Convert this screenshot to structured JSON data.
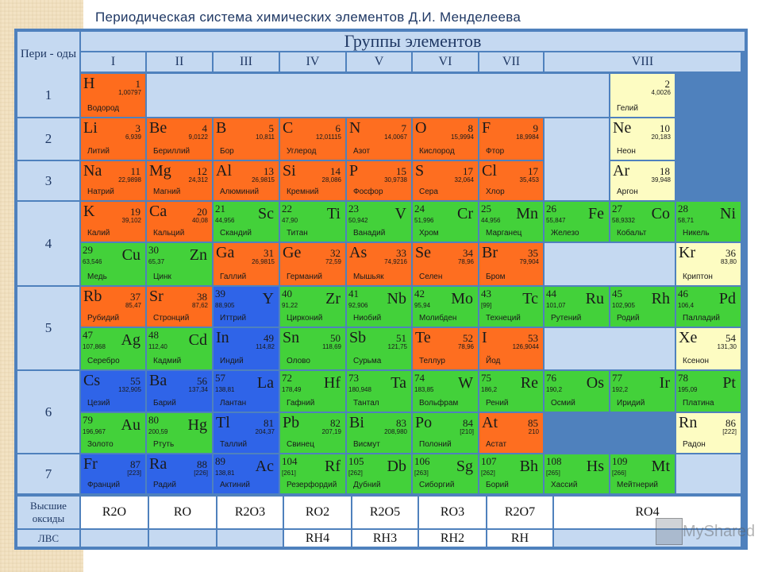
{
  "title": "Периодическая система химических элементов Д.И. Менделеева",
  "periods_label": "Пери - оды",
  "groups_label": "Группы элементов",
  "groups": [
    "I",
    "II",
    "III",
    "IV",
    "V",
    "VI",
    "VII",
    "VIII"
  ],
  "periods": [
    "1",
    "2",
    "3",
    "4",
    "5",
    "6",
    "7"
  ],
  "oxides_label": "Высшие оксиды",
  "hydrides_label": "ЛВС",
  "oxides": [
    "R2O",
    "RO",
    "R2O3",
    "RO2",
    "R2O5",
    "RO3",
    "R2O7",
    "RO4"
  ],
  "hydrides": [
    "",
    "",
    "",
    "RH4",
    "RH3",
    "RH2",
    "RH",
    ""
  ],
  "watermark": "MyShared",
  "colors": {
    "s": "#fe6c1d",
    "p": "#fe6e20",
    "d": "#43d13a",
    "f": "#2f64e8",
    "noble": "#fdfcc2",
    "header": "#c5d9f1",
    "grid": "#4f81bd"
  },
  "elements": [
    {
      "row": 0,
      "col": 0,
      "sym": "H",
      "num": "1",
      "mass": "1,00797",
      "name": "Водород",
      "t": "s",
      "al": "L"
    },
    {
      "row": 0,
      "col": 8,
      "sym": "",
      "num": "2",
      "mass": "4,0026",
      "name": "Гелий",
      "t": "noble",
      "al": "L"
    },
    {
      "row": 1,
      "col": 0,
      "sym": "Li",
      "num": "3",
      "mass": "6,939",
      "name": "Литий",
      "t": "s",
      "al": "L"
    },
    {
      "row": 1,
      "col": 1,
      "sym": "Be",
      "num": "4",
      "mass": "9,0122",
      "name": "Бериллий",
      "t": "s",
      "al": "L"
    },
    {
      "row": 1,
      "col": 2,
      "sym": "B",
      "num": "5",
      "mass": "10,811",
      "name": "Бор",
      "t": "p",
      "al": "L"
    },
    {
      "row": 1,
      "col": 3,
      "sym": "C",
      "num": "6",
      "mass": "12,01115",
      "name": "Углерод",
      "t": "p",
      "al": "L"
    },
    {
      "row": 1,
      "col": 4,
      "sym": "N",
      "num": "7",
      "mass": "14,0067",
      "name": "Азот",
      "t": "p",
      "al": "L"
    },
    {
      "row": 1,
      "col": 5,
      "sym": "O",
      "num": "8",
      "mass": "15,9994",
      "name": "Кислород",
      "t": "p",
      "al": "L"
    },
    {
      "row": 1,
      "col": 6,
      "sym": "F",
      "num": "9",
      "mass": "18,9984",
      "name": "Фтор",
      "t": "p",
      "al": "L"
    },
    {
      "row": 1,
      "col": 8,
      "sym": "Ne",
      "num": "10",
      "mass": "20,183",
      "name": "Неон",
      "t": "noble",
      "al": "L"
    },
    {
      "row": 2,
      "col": 0,
      "sym": "Na",
      "num": "11",
      "mass": "22,9898",
      "name": "Натрий",
      "t": "s",
      "al": "L"
    },
    {
      "row": 2,
      "col": 1,
      "sym": "Mg",
      "num": "12",
      "mass": "24,312",
      "name": "Магний",
      "t": "s",
      "al": "L"
    },
    {
      "row": 2,
      "col": 2,
      "sym": "Al",
      "num": "13",
      "mass": "26,9815",
      "name": "Алюминий",
      "t": "p",
      "al": "L"
    },
    {
      "row": 2,
      "col": 3,
      "sym": "Si",
      "num": "14",
      "mass": "28,086",
      "name": "Кремний",
      "t": "p",
      "al": "L"
    },
    {
      "row": 2,
      "col": 4,
      "sym": "P",
      "num": "15",
      "mass": "30,9738",
      "name": "Фосфор",
      "t": "p",
      "al": "L"
    },
    {
      "row": 2,
      "col": 5,
      "sym": "S",
      "num": "17",
      "mass": "32,064",
      "name": "Сера",
      "t": "p",
      "al": "L"
    },
    {
      "row": 2,
      "col": 6,
      "sym": "Cl",
      "num": "17",
      "mass": "35,453",
      "name": "Хлор",
      "t": "p",
      "al": "L"
    },
    {
      "row": 2,
      "col": 8,
      "sym": "Ar",
      "num": "18",
      "mass": "39,948",
      "name": "Аргон",
      "t": "noble",
      "al": "L"
    },
    {
      "row": 3,
      "col": 0,
      "sym": "K",
      "num": "19",
      "mass": "39,102",
      "name": "Калий",
      "t": "s",
      "al": "L"
    },
    {
      "row": 3,
      "col": 1,
      "sym": "Ca",
      "num": "20",
      "mass": "40,08",
      "name": "Кальций",
      "t": "s",
      "al": "L"
    },
    {
      "row": 3,
      "col": 2,
      "sym": "Sc",
      "num": "21",
      "mass": "44,956",
      "name": "Скандий",
      "t": "d",
      "al": "R"
    },
    {
      "row": 3,
      "col": 3,
      "sym": "Ti",
      "num": "22",
      "mass": "47,90",
      "name": "Титан",
      "t": "d",
      "al": "R"
    },
    {
      "row": 3,
      "col": 4,
      "sym": "V",
      "num": "23",
      "mass": "50,942",
      "name": "Ванадий",
      "t": "d",
      "al": "R"
    },
    {
      "row": 3,
      "col": 5,
      "sym": "Cr",
      "num": "24",
      "mass": "51,996",
      "name": "Хром",
      "t": "d",
      "al": "R"
    },
    {
      "row": 3,
      "col": 6,
      "sym": "Mn",
      "num": "25",
      "mass": "44,956",
      "name": "Марганец",
      "t": "d",
      "al": "R"
    },
    {
      "row": 3,
      "col": 7,
      "sym": "Fe",
      "num": "26",
      "mass": "55,847",
      "name": "Железо",
      "t": "d",
      "al": "R"
    },
    {
      "row": 3,
      "col": 8,
      "sym": "Co",
      "num": "27",
      "mass": "58,9332",
      "name": "Кобальт",
      "t": "d",
      "al": "R"
    },
    {
      "row": 3,
      "col": 9,
      "sym": "Ni",
      "num": "28",
      "mass": "58,71",
      "name": "Никель",
      "t": "d",
      "al": "R"
    },
    {
      "row": 4,
      "col": 0,
      "sym": "Cu",
      "num": "29",
      "mass": "63,546",
      "name": "Медь",
      "t": "d",
      "al": "R"
    },
    {
      "row": 4,
      "col": 1,
      "sym": "Zn",
      "num": "30",
      "mass": "65,37",
      "name": "Цинк",
      "t": "d",
      "al": "R"
    },
    {
      "row": 4,
      "col": 2,
      "sym": "Ga",
      "num": "31",
      "mass": "26,9815",
      "name": "Галлий",
      "t": "p",
      "al": "L"
    },
    {
      "row": 4,
      "col": 3,
      "sym": "Ge",
      "num": "32",
      "mass": "72,59",
      "name": "Германий",
      "t": "p",
      "al": "L"
    },
    {
      "row": 4,
      "col": 4,
      "sym": "As",
      "num": "33",
      "mass": "74,9216",
      "name": "Мышьяк",
      "t": "p",
      "al": "L"
    },
    {
      "row": 4,
      "col": 5,
      "sym": "Se",
      "num": "34",
      "mass": "78,96",
      "name": "Селен",
      "t": "p",
      "al": "L"
    },
    {
      "row": 4,
      "col": 6,
      "sym": "Br",
      "num": "35",
      "mass": "79,904",
      "name": "Бром",
      "t": "p",
      "al": "L"
    },
    {
      "row": 4,
      "col": 9,
      "sym": "Kr",
      "num": "36",
      "mass": "83,80",
      "name": "Криптон",
      "t": "noble",
      "al": "L"
    },
    {
      "row": 5,
      "col": 0,
      "sym": "Rb",
      "num": "37",
      "mass": "85,47",
      "name": "Рубидий",
      "t": "s",
      "al": "L"
    },
    {
      "row": 5,
      "col": 1,
      "sym": "Sr",
      "num": "38",
      "mass": "87,62",
      "name": "Стронций",
      "t": "s",
      "al": "L"
    },
    {
      "row": 5,
      "col": 2,
      "sym": "Y",
      "num": "39",
      "mass": "88,905",
      "name": "Иттрий",
      "t": "f",
      "al": "R"
    },
    {
      "row": 5,
      "col": 3,
      "sym": "Zr",
      "num": "40",
      "mass": "91,22",
      "name": "Цирконий",
      "t": "d",
      "al": "R"
    },
    {
      "row": 5,
      "col": 4,
      "sym": "Nb",
      "num": "41",
      "mass": "92,906",
      "name": "Ниобий",
      "t": "d",
      "al": "R"
    },
    {
      "row": 5,
      "col": 5,
      "sym": "Mo",
      "num": "42",
      "mass": "95,94",
      "name": "Молибден",
      "t": "d",
      "al": "R"
    },
    {
      "row": 5,
      "col": 6,
      "sym": "Tc",
      "num": "43",
      "mass": "[99]",
      "name": "Технеций",
      "t": "d",
      "al": "R"
    },
    {
      "row": 5,
      "col": 7,
      "sym": "Ru",
      "num": "44",
      "mass": "101,07",
      "name": "Рутений",
      "t": "d",
      "al": "R"
    },
    {
      "row": 5,
      "col": 8,
      "sym": "Rh",
      "num": "45",
      "mass": "102,905",
      "name": "Родий",
      "t": "d",
      "al": "R"
    },
    {
      "row": 5,
      "col": 9,
      "sym": "Pd",
      "num": "46",
      "mass": "106,4",
      "name": "Палладий",
      "t": "d",
      "al": "R"
    },
    {
      "row": 6,
      "col": 0,
      "sym": "Ag",
      "num": "47",
      "mass": "107,868",
      "name": "Серебро",
      "t": "d",
      "al": "R"
    },
    {
      "row": 6,
      "col": 1,
      "sym": "Cd",
      "num": "48",
      "mass": "112,40",
      "name": "Кадмий",
      "t": "d",
      "al": "R"
    },
    {
      "row": 6,
      "col": 2,
      "sym": "In",
      "num": "49",
      "mass": "114,82",
      "name": "Индий",
      "t": "f",
      "al": "L"
    },
    {
      "row": 6,
      "col": 3,
      "sym": "Sn",
      "num": "50",
      "mass": "118,69",
      "name": "Олово",
      "t": "d",
      "al": "L"
    },
    {
      "row": 6,
      "col": 4,
      "sym": "Sb",
      "num": "51",
      "mass": "121,75",
      "name": "Сурьма",
      "t": "d",
      "al": "L"
    },
    {
      "row": 6,
      "col": 5,
      "sym": "Te",
      "num": "52",
      "mass": "78,96",
      "name": "Теллур",
      "t": "p",
      "al": "L"
    },
    {
      "row": 6,
      "col": 6,
      "sym": "I",
      "num": "53",
      "mass": "126,9044",
      "name": "Йод",
      "t": "p",
      "al": "L"
    },
    {
      "row": 6,
      "col": 9,
      "sym": "Xe",
      "num": "54",
      "mass": "131,30",
      "name": "Ксенон",
      "t": "noble",
      "al": "L"
    },
    {
      "row": 7,
      "col": 0,
      "sym": "Cs",
      "num": "55",
      "mass": "132,905",
      "name": "Цезий",
      "t": "f",
      "al": "L"
    },
    {
      "row": 7,
      "col": 1,
      "sym": "Ba",
      "num": "56",
      "mass": "137,34",
      "name": "Барий",
      "t": "f",
      "al": "L"
    },
    {
      "row": 7,
      "col": 2,
      "sym": "La",
      "num": "57",
      "mass": "138,81",
      "name": "Лантан",
      "t": "f",
      "al": "R"
    },
    {
      "row": 7,
      "col": 3,
      "sym": "Hf",
      "num": "72",
      "mass": "178,49",
      "name": "Гафний",
      "t": "d",
      "al": "R"
    },
    {
      "row": 7,
      "col": 4,
      "sym": "Ta",
      "num": "73",
      "mass": "180,948",
      "name": "Тантал",
      "t": "d",
      "al": "R"
    },
    {
      "row": 7,
      "col": 5,
      "sym": "W",
      "num": "74",
      "mass": "183,85",
      "name": "Вольфрам",
      "t": "d",
      "al": "R"
    },
    {
      "row": 7,
      "col": 6,
      "sym": "Re",
      "num": "75",
      "mass": "186,2",
      "name": "Рений",
      "t": "d",
      "al": "R"
    },
    {
      "row": 7,
      "col": 7,
      "sym": "Os",
      "num": "76",
      "mass": "190,2",
      "name": "Осмий",
      "t": "d",
      "al": "R"
    },
    {
      "row": 7,
      "col": 8,
      "sym": "Ir",
      "num": "77",
      "mass": "192,2",
      "name": "Иридий",
      "t": "d",
      "al": "R"
    },
    {
      "row": 7,
      "col": 9,
      "sym": "Pt",
      "num": "78",
      "mass": "195,09",
      "name": "Платина",
      "t": "d",
      "al": "R"
    },
    {
      "row": 8,
      "col": 0,
      "sym": "Au",
      "num": "79",
      "mass": "196,967",
      "name": "Золото",
      "t": "d",
      "al": "R"
    },
    {
      "row": 8,
      "col": 1,
      "sym": "Hg",
      "num": "80",
      "mass": "200,59",
      "name": "Ртуть",
      "t": "d",
      "al": "R"
    },
    {
      "row": 8,
      "col": 2,
      "sym": "Tl",
      "num": "81",
      "mass": "204,37",
      "name": "Таллий",
      "t": "f",
      "al": "L"
    },
    {
      "row": 8,
      "col": 3,
      "sym": "Pb",
      "num": "82",
      "mass": "207,19",
      "name": "Свинец",
      "t": "d",
      "al": "L"
    },
    {
      "row": 8,
      "col": 4,
      "sym": "Bi",
      "num": "83",
      "mass": "208,980",
      "name": "Висмут",
      "t": "d",
      "al": "L"
    },
    {
      "row": 8,
      "col": 5,
      "sym": "Po",
      "num": "84",
      "mass": "[210]",
      "name": "Полоний",
      "t": "d",
      "al": "L"
    },
    {
      "row": 8,
      "col": 6,
      "sym": "At",
      "num": "85",
      "mass": "210",
      "name": "Астат",
      "t": "p",
      "al": "L"
    },
    {
      "row": 8,
      "col": 9,
      "sym": "Rn",
      "num": "86",
      "mass": "[222]",
      "name": "Радон",
      "t": "noble",
      "al": "L"
    },
    {
      "row": 9,
      "col": 0,
      "sym": "Fr",
      "num": "87",
      "mass": "[223]",
      "name": "Франций",
      "t": "f",
      "al": "L"
    },
    {
      "row": 9,
      "col": 1,
      "sym": "Ra",
      "num": "88",
      "mass": "[226]",
      "name": "Радий",
      "t": "f",
      "al": "L"
    },
    {
      "row": 9,
      "col": 2,
      "sym": "Ac",
      "num": "89",
      "mass": "138,81",
      "name": "Актиний",
      "t": "f",
      "al": "R"
    },
    {
      "row": 9,
      "col": 3,
      "sym": "Rf",
      "num": "104",
      "mass": "[261]",
      "name": "Резерфордий",
      "t": "d",
      "al": "R"
    },
    {
      "row": 9,
      "col": 4,
      "sym": "Db",
      "num": "105",
      "mass": "[262]",
      "name": "Дубний",
      "t": "d",
      "al": "R"
    },
    {
      "row": 9,
      "col": 5,
      "sym": "Sg",
      "num": "106",
      "mass": "[263]",
      "name": "Сиборгий",
      "t": "d",
      "al": "R"
    },
    {
      "row": 9,
      "col": 6,
      "sym": "Bh",
      "num": "107",
      "mass": "[262]",
      "name": "Борий",
      "t": "d",
      "al": "R"
    },
    {
      "row": 9,
      "col": 7,
      "sym": "Hs",
      "num": "108",
      "mass": "[265]",
      "name": "Хассий",
      "t": "d",
      "al": "R"
    },
    {
      "row": 9,
      "col": 8,
      "sym": "Mt",
      "num": "109",
      "mass": "[266]",
      "name": "Мейтнерий",
      "t": "d",
      "al": "R"
    }
  ]
}
